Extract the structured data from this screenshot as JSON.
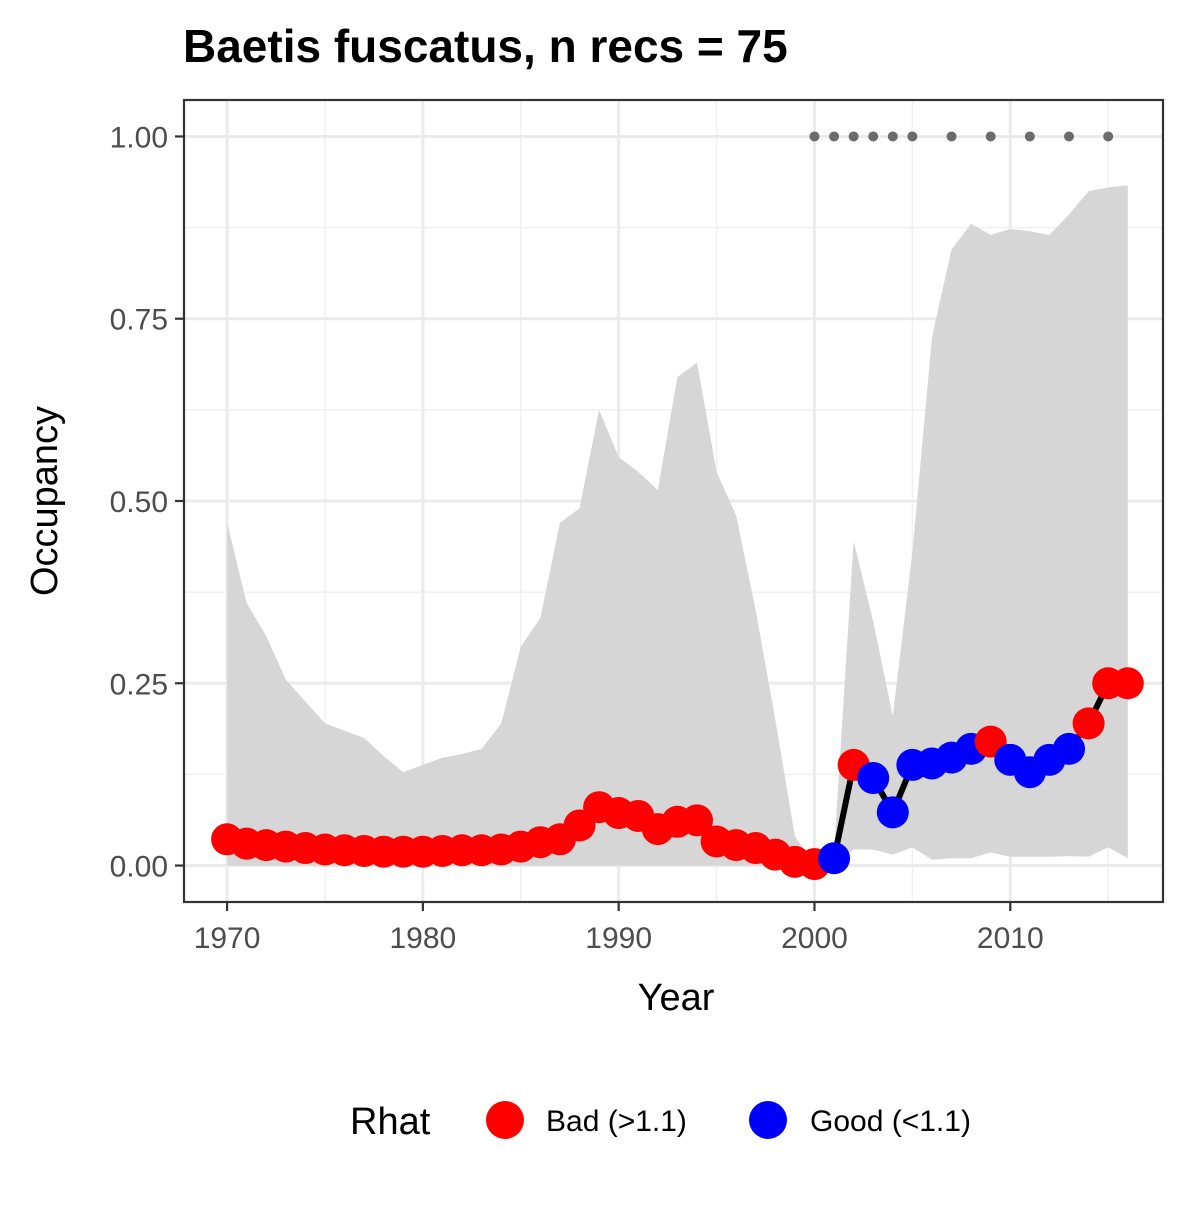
{
  "chart_data": {
    "type": "line",
    "title": "Baetis fuscatus, n recs = 75",
    "xlabel": "Year",
    "ylabel": "Occupancy",
    "xlim": [
      1967.8,
      2017.8
    ],
    "ylim": [
      -0.05,
      1.05
    ],
    "x_ticks": [
      1970,
      1980,
      1990,
      2000,
      2010
    ],
    "x_tick_labels": [
      "1970",
      "1980",
      "1990",
      "2000",
      "2010"
    ],
    "y_ticks": [
      0.0,
      0.25,
      0.5,
      0.75,
      1.0
    ],
    "y_tick_labels": [
      "0.00",
      "0.25",
      "0.50",
      "0.75",
      "1.00"
    ],
    "grid": true,
    "years": [
      1970,
      1971,
      1972,
      1973,
      1974,
      1975,
      1976,
      1977,
      1978,
      1979,
      1980,
      1981,
      1982,
      1983,
      1984,
      1985,
      1986,
      1987,
      1988,
      1989,
      1990,
      1991,
      1992,
      1993,
      1994,
      1995,
      1996,
      1997,
      1998,
      1999,
      2000,
      2001,
      2002,
      2003,
      2004,
      2005,
      2006,
      2007,
      2008,
      2009,
      2010,
      2011,
      2012,
      2013,
      2014,
      2015,
      2016
    ],
    "occupancy": [
      0.036,
      0.03,
      0.028,
      0.026,
      0.024,
      0.022,
      0.021,
      0.02,
      0.019,
      0.019,
      0.019,
      0.02,
      0.021,
      0.021,
      0.022,
      0.026,
      0.032,
      0.036,
      0.055,
      0.08,
      0.072,
      0.068,
      0.05,
      0.06,
      0.062,
      0.033,
      0.028,
      0.024,
      0.015,
      0.005,
      0.002,
      0.01,
      0.138,
      0.12,
      0.073,
      0.138,
      0.14,
      0.148,
      0.16,
      0.17,
      0.145,
      0.128,
      0.145,
      0.16,
      0.195,
      0.25,
      0.25
    ],
    "rhat": [
      "Bad",
      "Bad",
      "Bad",
      "Bad",
      "Bad",
      "Bad",
      "Bad",
      "Bad",
      "Bad",
      "Bad",
      "Bad",
      "Bad",
      "Bad",
      "Bad",
      "Bad",
      "Bad",
      "Bad",
      "Bad",
      "Bad",
      "Bad",
      "Bad",
      "Bad",
      "Bad",
      "Bad",
      "Bad",
      "Bad",
      "Bad",
      "Bad",
      "Bad",
      "Bad",
      "Bad",
      "Good",
      "Bad",
      "Good",
      "Good",
      "Good",
      "Good",
      "Good",
      "Good",
      "Bad",
      "Good",
      "Good",
      "Good",
      "Good",
      "Bad",
      "Bad",
      "Bad"
    ],
    "ci_upper": [
      0.47,
      0.36,
      0.315,
      0.255,
      0.225,
      0.195,
      0.185,
      0.175,
      0.15,
      0.128,
      0.138,
      0.148,
      0.153,
      0.16,
      0.195,
      0.3,
      0.34,
      0.47,
      0.49,
      0.625,
      0.56,
      0.54,
      0.515,
      0.67,
      0.69,
      0.54,
      0.48,
      0.35,
      0.2,
      0.04,
      0.0,
      0.02,
      0.445,
      0.335,
      0.205,
      0.43,
      0.725,
      0.845,
      0.88,
      0.865,
      0.873,
      0.87,
      0.865,
      0.893,
      0.925,
      0.93,
      0.933
    ],
    "ci_lower": [
      0,
      0,
      0,
      0,
      0,
      0,
      0,
      0,
      0,
      0,
      0,
      0,
      0,
      0,
      0,
      0,
      0,
      0,
      0,
      0,
      0,
      0,
      0,
      0,
      0,
      0,
      0,
      0,
      0,
      0,
      0,
      0,
      0.022,
      0.022,
      0.015,
      0.025,
      0.008,
      0.01,
      0.01,
      0.018,
      0.012,
      0.012,
      0.012,
      0.013,
      0.012,
      0.025,
      0.01
    ],
    "record_years": [
      2000,
      2001,
      2002,
      2003,
      2004,
      2005,
      2007,
      2009,
      2011,
      2013,
      2015
    ],
    "record_marker_y": 1.0,
    "legend": {
      "title": "Rhat",
      "position": "bottom",
      "items": [
        {
          "key": "Bad",
          "label": "Bad (>1.1)",
          "color": "#ff0000"
        },
        {
          "key": "Good",
          "label": "Good (<1.1)",
          "color": "#0000ff"
        }
      ]
    },
    "colors": {
      "ribbon": "#d6d6d6",
      "line": "#000000",
      "record_dots": "#6b6b6b"
    }
  }
}
